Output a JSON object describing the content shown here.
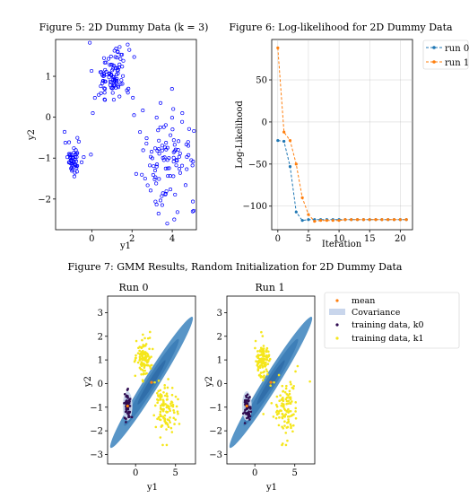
{
  "figure5": {
    "title": "Figure 5: 2D Dummy Data (k = 3)"
  },
  "figure6": {
    "title": "Figure 6: Log-likelihood for 2D Dummy Data"
  },
  "figure7": {
    "title": "Figure 7: GMM Results, Random Initialization for 2D Dummy Data"
  },
  "colors": {
    "scatter_marker": "#0000ff",
    "run0": "#1f77b4",
    "run1": "#ff7f0e",
    "ellipse_outer": "#4a8cc2",
    "ellipse_mid": "#3a7bb5",
    "ellipse_inner": "#2d6aa6",
    "cov_small_outer": "#c9d6ec",
    "cov_small_inner": "#a9bde0",
    "k0_points": "#2e0a4f",
    "k1_points": "#f5e61b",
    "mean_marker": "#ff7f0e"
  },
  "chart_data": [
    {
      "type": "scatter",
      "title": "Figure 5: 2D Dummy Data (k = 3)",
      "xlabel": "y1",
      "ylabel": "y2",
      "xlim": [
        -1.8,
        5.2
      ],
      "ylim": [
        -2.75,
        1.9
      ],
      "xticks": [
        0,
        2,
        4
      ],
      "yticks": [
        -2,
        -1,
        0,
        1
      ],
      "grid": false,
      "clusters": [
        {
          "center": [
            -0.9,
            -1.0
          ],
          "spread": [
            0.22,
            0.22
          ],
          "count": 50
        },
        {
          "center": [
            1.0,
            1.0
          ],
          "spread": [
            0.45,
            0.35
          ],
          "count": 100
        },
        {
          "center": [
            3.8,
            -1.0
          ],
          "spread": [
            0.7,
            0.55
          ],
          "count": 100
        }
      ],
      "extra_points": [
        [
          -0.1,
          1.82
        ],
        [
          0.05,
          0.1
        ],
        [
          2.1,
          0.05
        ],
        [
          4.5,
          0.1
        ],
        [
          4.05,
          0.2
        ],
        [
          2.65,
          -1.5
        ],
        [
          4.1,
          -2.5
        ],
        [
          3.75,
          -2.6
        ],
        [
          4.8,
          -0.7
        ]
      ]
    },
    {
      "type": "line",
      "title": "Figure 6: Log-likelihood for 2D Dummy Data",
      "xlabel": "Iteration",
      "ylabel": "Log-Likelihood",
      "xlim": [
        -1,
        22
      ],
      "ylim": [
        -128,
        98
      ],
      "xticks": [
        0,
        5,
        10,
        15,
        20
      ],
      "yticks": [
        -100,
        -50,
        0,
        50
      ],
      "grid": true,
      "legend": "top-right",
      "x": [
        0,
        1,
        2,
        3,
        4,
        5,
        6,
        7,
        8,
        9,
        10,
        11,
        12,
        13,
        14,
        15,
        16,
        17,
        18,
        19,
        20,
        21
      ],
      "series": [
        {
          "name": "run 0",
          "values": [
            -22,
            -23,
            -53,
            -107,
            -117,
            -116,
            -116,
            -116,
            -116,
            -116,
            -116,
            -116,
            -116,
            -116,
            -116,
            -116,
            -116,
            -116,
            -116,
            -116,
            -116,
            -116
          ]
        },
        {
          "name": "run 1",
          "values": [
            88,
            -12,
            -22,
            -50,
            -90,
            -110,
            -118,
            -117,
            -117,
            -117,
            -117,
            -116,
            -116,
            -116,
            -116,
            -116,
            -116,
            -116,
            -116,
            -116,
            -116,
            -116
          ]
        }
      ]
    },
    {
      "type": "scatter",
      "title": "Run 0",
      "xlabel": "y1",
      "ylabel": "y2",
      "xlim": [
        -3.5,
        7.5
      ],
      "ylim": [
        -3.4,
        3.7
      ],
      "xticks": [
        0,
        5
      ],
      "yticks": [
        -3,
        -2,
        -1,
        0,
        1,
        2,
        3
      ],
      "grid": false,
      "means": [
        [
          -1.0,
          -0.95
        ],
        [
          2.0,
          0.05
        ]
      ]
    },
    {
      "type": "scatter",
      "title": "Run 1",
      "xlabel": "y1",
      "ylabel": "y2",
      "xlim": [
        -3.5,
        7.5
      ],
      "ylim": [
        -3.4,
        3.7
      ],
      "xticks": [
        0,
        5
      ],
      "yticks": [
        -3,
        -2,
        -1,
        0,
        1,
        2,
        3
      ],
      "grid": false,
      "means": [
        [
          -1.0,
          -0.95
        ],
        [
          2.0,
          0.05
        ]
      ]
    }
  ],
  "figure7_legend": {
    "entries": [
      "mean",
      "Covariance",
      "training data, k0",
      "training data, k1"
    ]
  }
}
